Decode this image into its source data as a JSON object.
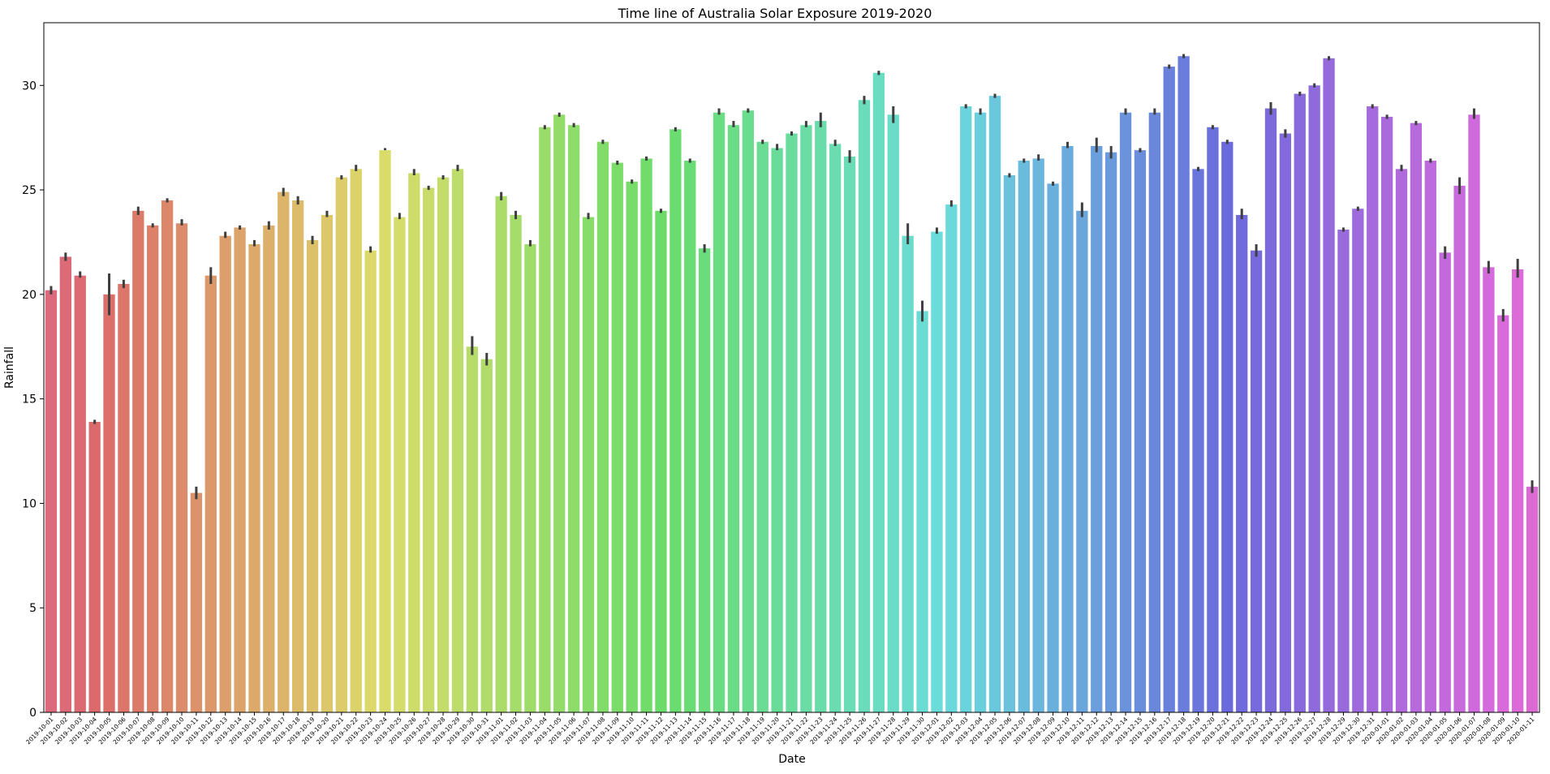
{
  "chart_data": {
    "type": "bar",
    "title": "Time line of Australia Solar Exposure 2019-2020",
    "xlabel": "Date",
    "ylabel": "Rainfall",
    "ylim": [
      0,
      33
    ],
    "yticks": [
      0,
      5,
      10,
      15,
      20,
      25,
      30
    ],
    "grid": false,
    "legend": "none",
    "color_hue_start": 350,
    "color_hue_end": 305,
    "categories": [
      "2019-10-01",
      "2019-10-02",
      "2019-10-03",
      "2019-10-04",
      "2019-10-05",
      "2019-10-06",
      "2019-10-07",
      "2019-10-08",
      "2019-10-09",
      "2019-10-10",
      "2019-10-11",
      "2019-10-12",
      "2019-10-13",
      "2019-10-14",
      "2019-10-15",
      "2019-10-16",
      "2019-10-17",
      "2019-10-18",
      "2019-10-19",
      "2019-10-20",
      "2019-10-21",
      "2019-10-22",
      "2019-10-23",
      "2019-10-24",
      "2019-10-25",
      "2019-10-26",
      "2019-10-27",
      "2019-10-28",
      "2019-10-29",
      "2019-10-30",
      "2019-10-31",
      "2019-11-01",
      "2019-11-02",
      "2019-11-03",
      "2019-11-04",
      "2019-11-05",
      "2019-11-06",
      "2019-11-07",
      "2019-11-08",
      "2019-11-09",
      "2019-11-10",
      "2019-11-11",
      "2019-11-12",
      "2019-11-13",
      "2019-11-14",
      "2019-11-15",
      "2019-11-16",
      "2019-11-17",
      "2019-11-18",
      "2019-11-19",
      "2019-11-20",
      "2019-11-21",
      "2019-11-22",
      "2019-11-23",
      "2019-11-24",
      "2019-11-25",
      "2019-11-26",
      "2019-11-27",
      "2019-11-28",
      "2019-11-29",
      "2019-11-30",
      "2019-12-01",
      "2019-12-02",
      "2019-12-03",
      "2019-12-04",
      "2019-12-05",
      "2019-12-06",
      "2019-12-07",
      "2019-12-08",
      "2019-12-09",
      "2019-12-10",
      "2019-12-11",
      "2019-12-12",
      "2019-12-13",
      "2019-12-14",
      "2019-12-15",
      "2019-12-16",
      "2019-12-17",
      "2019-12-18",
      "2019-12-19",
      "2019-12-20",
      "2019-12-21",
      "2019-12-22",
      "2019-12-23",
      "2019-12-24",
      "2019-12-25",
      "2019-12-26",
      "2019-12-27",
      "2019-12-28",
      "2019-12-29",
      "2019-12-30",
      "2019-12-31",
      "2020-01-01",
      "2020-01-02",
      "2020-01-03",
      "2020-01-04",
      "2020-01-05",
      "2020-01-06",
      "2020-01-07",
      "2020-01-08",
      "2020-01-09",
      "2020-01-10",
      "2020-01-11"
    ],
    "values": [
      20.2,
      21.8,
      20.9,
      13.9,
      20.0,
      20.5,
      24.0,
      23.3,
      24.5,
      23.4,
      10.5,
      20.9,
      22.8,
      23.2,
      22.4,
      23.3,
      24.9,
      24.5,
      22.6,
      23.8,
      25.6,
      26.0,
      22.1,
      26.9,
      23.7,
      25.8,
      25.1,
      25.6,
      26.0,
      17.5,
      16.9,
      24.7,
      23.8,
      22.4,
      28.0,
      28.6,
      28.1,
      23.7,
      27.3,
      26.3,
      25.4,
      26.5,
      24.0,
      27.9,
      26.4,
      22.2,
      28.7,
      28.1,
      28.8,
      27.3,
      27.0,
      27.7,
      28.1,
      28.3,
      27.2,
      26.6,
      29.3,
      30.6,
      28.6,
      22.8,
      19.2,
      23.0,
      24.3,
      29.0,
      28.7,
      29.5,
      25.7,
      26.4,
      26.5,
      25.3,
      27.1,
      24.0,
      27.1,
      26.8,
      28.7,
      26.9,
      28.7,
      30.9,
      31.4,
      26.0,
      28.0,
      27.3,
      23.8,
      22.1,
      28.9,
      27.7,
      29.6,
      30.0,
      31.3,
      23.1,
      24.1,
      29.0,
      28.5,
      26.0,
      28.2,
      26.4,
      22.0,
      25.2,
      28.6,
      21.3,
      19.0,
      21.2,
      10.8
    ],
    "error_low": [
      20.0,
      21.6,
      20.8,
      13.8,
      19.0,
      20.3,
      23.8,
      23.2,
      24.4,
      23.3,
      10.2,
      20.5,
      22.7,
      23.1,
      22.3,
      23.1,
      24.7,
      24.3,
      22.4,
      23.7,
      25.5,
      25.9,
      22.0,
      26.9,
      23.6,
      25.7,
      25.0,
      25.5,
      25.9,
      17.1,
      16.6,
      24.5,
      23.6,
      22.3,
      27.9,
      28.5,
      28.0,
      23.6,
      27.2,
      26.2,
      25.3,
      26.4,
      23.9,
      27.8,
      26.3,
      22.0,
      28.6,
      28.0,
      28.7,
      27.2,
      26.9,
      27.6,
      28.0,
      28.0,
      27.1,
      26.3,
      29.1,
      30.5,
      28.2,
      22.4,
      18.7,
      22.9,
      24.2,
      28.9,
      28.6,
      29.4,
      25.6,
      26.3,
      26.4,
      25.2,
      27.0,
      23.7,
      26.8,
      26.5,
      28.6,
      26.8,
      28.6,
      30.8,
      31.3,
      25.9,
      27.9,
      27.2,
      23.6,
      21.8,
      28.6,
      27.5,
      29.5,
      29.9,
      31.2,
      23.0,
      24.0,
      28.9,
      28.4,
      25.9,
      28.1,
      26.3,
      21.7,
      24.8,
      28.4,
      21.0,
      18.7,
      20.8,
      10.5
    ],
    "error_high": [
      20.4,
      22.0,
      21.1,
      14.0,
      21.0,
      20.7,
      24.2,
      23.4,
      24.6,
      23.6,
      10.8,
      21.3,
      23.0,
      23.3,
      22.6,
      23.5,
      25.1,
      24.7,
      22.8,
      24.0,
      25.7,
      26.2,
      22.3,
      27.0,
      23.9,
      26.0,
      25.2,
      25.7,
      26.2,
      18.0,
      17.2,
      24.9,
      24.0,
      22.6,
      28.1,
      28.7,
      28.2,
      23.9,
      27.4,
      26.4,
      25.5,
      26.6,
      24.1,
      28.0,
      26.5,
      22.4,
      28.9,
      28.3,
      28.9,
      27.4,
      27.2,
      27.8,
      28.3,
      28.7,
      27.4,
      26.9,
      29.5,
      30.7,
      29.0,
      23.4,
      19.7,
      23.2,
      24.5,
      29.1,
      28.9,
      29.6,
      25.8,
      26.5,
      26.7,
      25.4,
      27.3,
      24.4,
      27.5,
      27.1,
      28.9,
      27.0,
      28.9,
      31.0,
      31.5,
      26.1,
      28.1,
      27.4,
      24.1,
      22.4,
      29.2,
      27.9,
      29.7,
      30.1,
      31.4,
      23.2,
      24.2,
      29.1,
      28.6,
      26.2,
      28.3,
      26.5,
      22.3,
      25.6,
      28.9,
      21.6,
      19.3,
      21.7,
      11.1
    ]
  }
}
